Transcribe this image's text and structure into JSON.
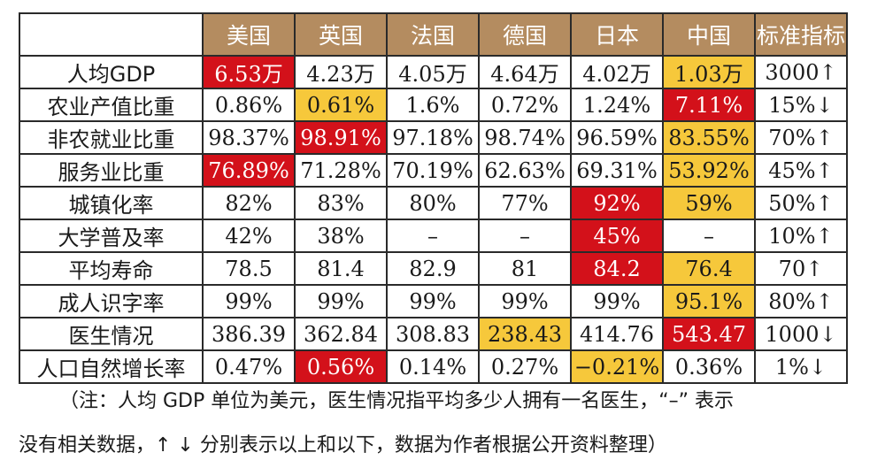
{
  "table": {
    "headers": [
      "美国",
      "英国",
      "法国",
      "德国",
      "日本",
      "中国",
      "标准指标"
    ],
    "rows": [
      {
        "label": "人均GDP",
        "cells": [
          {
            "v": "6.53万",
            "hl": "red"
          },
          {
            "v": "4.23万"
          },
          {
            "v": "4.05万"
          },
          {
            "v": "4.64万"
          },
          {
            "v": "4.02万"
          },
          {
            "v": "1.03万",
            "hl": "yellow"
          },
          {
            "v": "3000↑"
          }
        ]
      },
      {
        "label": "农业产值比重",
        "cells": [
          {
            "v": "0.86%"
          },
          {
            "v": "0.61%",
            "hl": "yellow"
          },
          {
            "v": "1.6%"
          },
          {
            "v": "0.72%"
          },
          {
            "v": "1.24%"
          },
          {
            "v": "7.11%",
            "hl": "red"
          },
          {
            "v": "15%↓"
          }
        ]
      },
      {
        "label": "非农就业比重",
        "cells": [
          {
            "v": "98.37%"
          },
          {
            "v": "98.91%",
            "hl": "red"
          },
          {
            "v": "97.18%"
          },
          {
            "v": "98.74%"
          },
          {
            "v": "96.59%"
          },
          {
            "v": "83.55%",
            "hl": "yellow"
          },
          {
            "v": "70%↑"
          }
        ]
      },
      {
        "label": "服务业比重",
        "cells": [
          {
            "v": "76.89%",
            "hl": "red"
          },
          {
            "v": "71.28%"
          },
          {
            "v": "70.19%"
          },
          {
            "v": "62.63%"
          },
          {
            "v": "69.31%"
          },
          {
            "v": "53.92%",
            "hl": "yellow"
          },
          {
            "v": "45%↑"
          }
        ]
      },
      {
        "label": "城镇化率",
        "cells": [
          {
            "v": "82%"
          },
          {
            "v": "83%"
          },
          {
            "v": "80%"
          },
          {
            "v": "77%"
          },
          {
            "v": "92%",
            "hl": "red"
          },
          {
            "v": "59%",
            "hl": "yellow"
          },
          {
            "v": "50%↑"
          }
        ]
      },
      {
        "label": "大学普及率",
        "cells": [
          {
            "v": "42%"
          },
          {
            "v": "38%"
          },
          {
            "v": "–"
          },
          {
            "v": "–"
          },
          {
            "v": "45%",
            "hl": "red"
          },
          {
            "v": "–"
          },
          {
            "v": "10%↑"
          }
        ]
      },
      {
        "label": "平均寿命",
        "cells": [
          {
            "v": "78.5"
          },
          {
            "v": "81.4"
          },
          {
            "v": "82.9"
          },
          {
            "v": "81"
          },
          {
            "v": "84.2",
            "hl": "red"
          },
          {
            "v": "76.4",
            "hl": "yellow"
          },
          {
            "v": "70↑"
          }
        ]
      },
      {
        "label": "成人识字率",
        "cells": [
          {
            "v": "99%"
          },
          {
            "v": "99%"
          },
          {
            "v": "99%"
          },
          {
            "v": "99%"
          },
          {
            "v": "99%"
          },
          {
            "v": "95.1%",
            "hl": "yellow"
          },
          {
            "v": "80%↑"
          }
        ]
      },
      {
        "label": "医生情况",
        "cells": [
          {
            "v": "386.39"
          },
          {
            "v": "362.84"
          },
          {
            "v": "308.83"
          },
          {
            "v": "238.43",
            "hl": "yellow"
          },
          {
            "v": "414.76"
          },
          {
            "v": "543.47",
            "hl": "red"
          },
          {
            "v": "1000↓"
          }
        ]
      },
      {
        "label": "人口自然增长率",
        "cells": [
          {
            "v": "0.47%"
          },
          {
            "v": "0.56%",
            "hl": "red"
          },
          {
            "v": "0.14%"
          },
          {
            "v": "0.27%"
          },
          {
            "v": "−0.21%",
            "hl": "yellow"
          },
          {
            "v": "0.36%"
          },
          {
            "v": "1%↓"
          }
        ]
      }
    ]
  },
  "note": {
    "line1": "（注：人均 GDP 单位为美元，医生情况指平均多少人拥有一名医生，“–” 表示",
    "line2": "没有相关数据，↑ ↓ 分别表示以上和以下，数据为作者根据公开资料整理）"
  },
  "colors": {
    "header_bg": "#b48c60",
    "highlight_red": "#d3111a",
    "highlight_yellow": "#f6c83b"
  }
}
